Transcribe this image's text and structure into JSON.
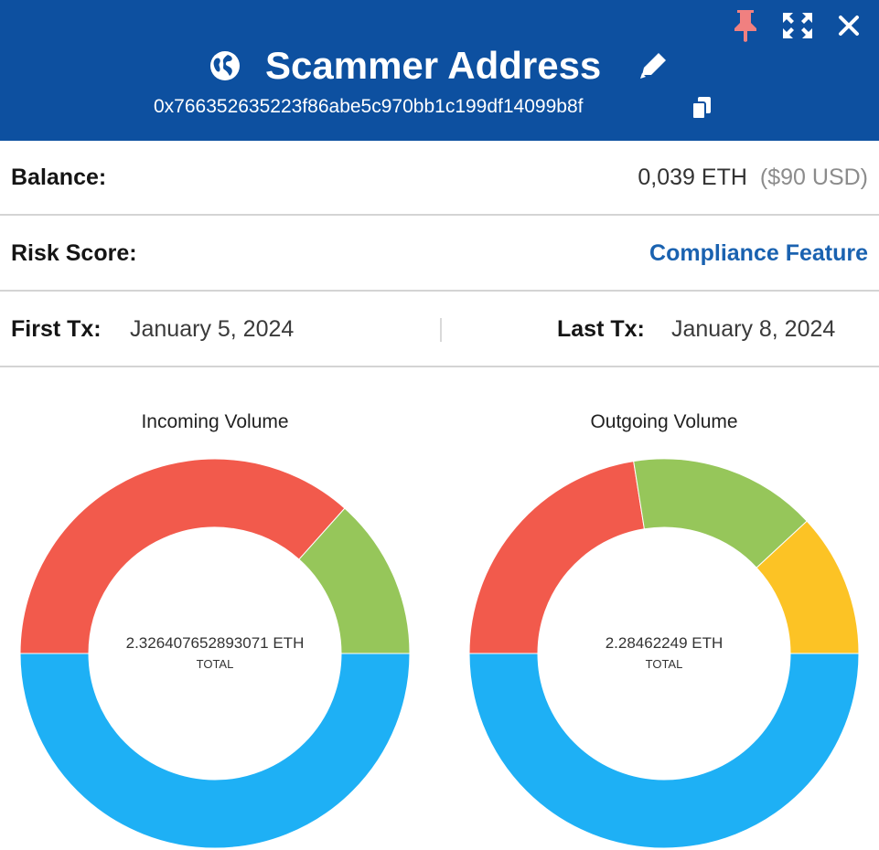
{
  "header": {
    "title": "Scammer Address",
    "address": "0x766352635223f86abe5c970bb1c199df14099b8f",
    "icons": [
      "globe-icon",
      "pencil-icon",
      "copy-icon",
      "pin-icon",
      "expand-icon",
      "close-icon"
    ],
    "background_color": "#0d50a0",
    "pin_color": "#f08080"
  },
  "balance": {
    "label": "Balance:",
    "value": "0,039 ETH",
    "usd": "($90 USD)"
  },
  "risk": {
    "label": "Risk Score:",
    "link": "Compliance Feature",
    "link_color": "#1a62b0"
  },
  "tx": {
    "first_label": "First Tx:",
    "first_value": "January 5, 2024",
    "last_label": "Last Tx:",
    "last_value": "January 8, 2024"
  },
  "chart_data": [
    {
      "type": "pie",
      "title": "Incoming Volume",
      "center_value": "2.326407652893071 ETH",
      "center_label": "TOTAL",
      "slices": [
        {
          "fraction": 0.5,
          "color": "#1eb0f5"
        },
        {
          "fraction": 0.366,
          "color": "#f25a4c"
        },
        {
          "fraction": 0.134,
          "color": "#96c65a"
        }
      ]
    },
    {
      "type": "pie",
      "title": "Outgoing Volume",
      "center_value": "2.28462249 ETH",
      "center_label": "TOTAL",
      "slices": [
        {
          "fraction": 0.5,
          "color": "#1eb0f5"
        },
        {
          "fraction": 0.225,
          "color": "#f25a4c"
        },
        {
          "fraction": 0.156,
          "color": "#96c65a"
        },
        {
          "fraction": 0.119,
          "color": "#fcc325"
        }
      ]
    }
  ]
}
